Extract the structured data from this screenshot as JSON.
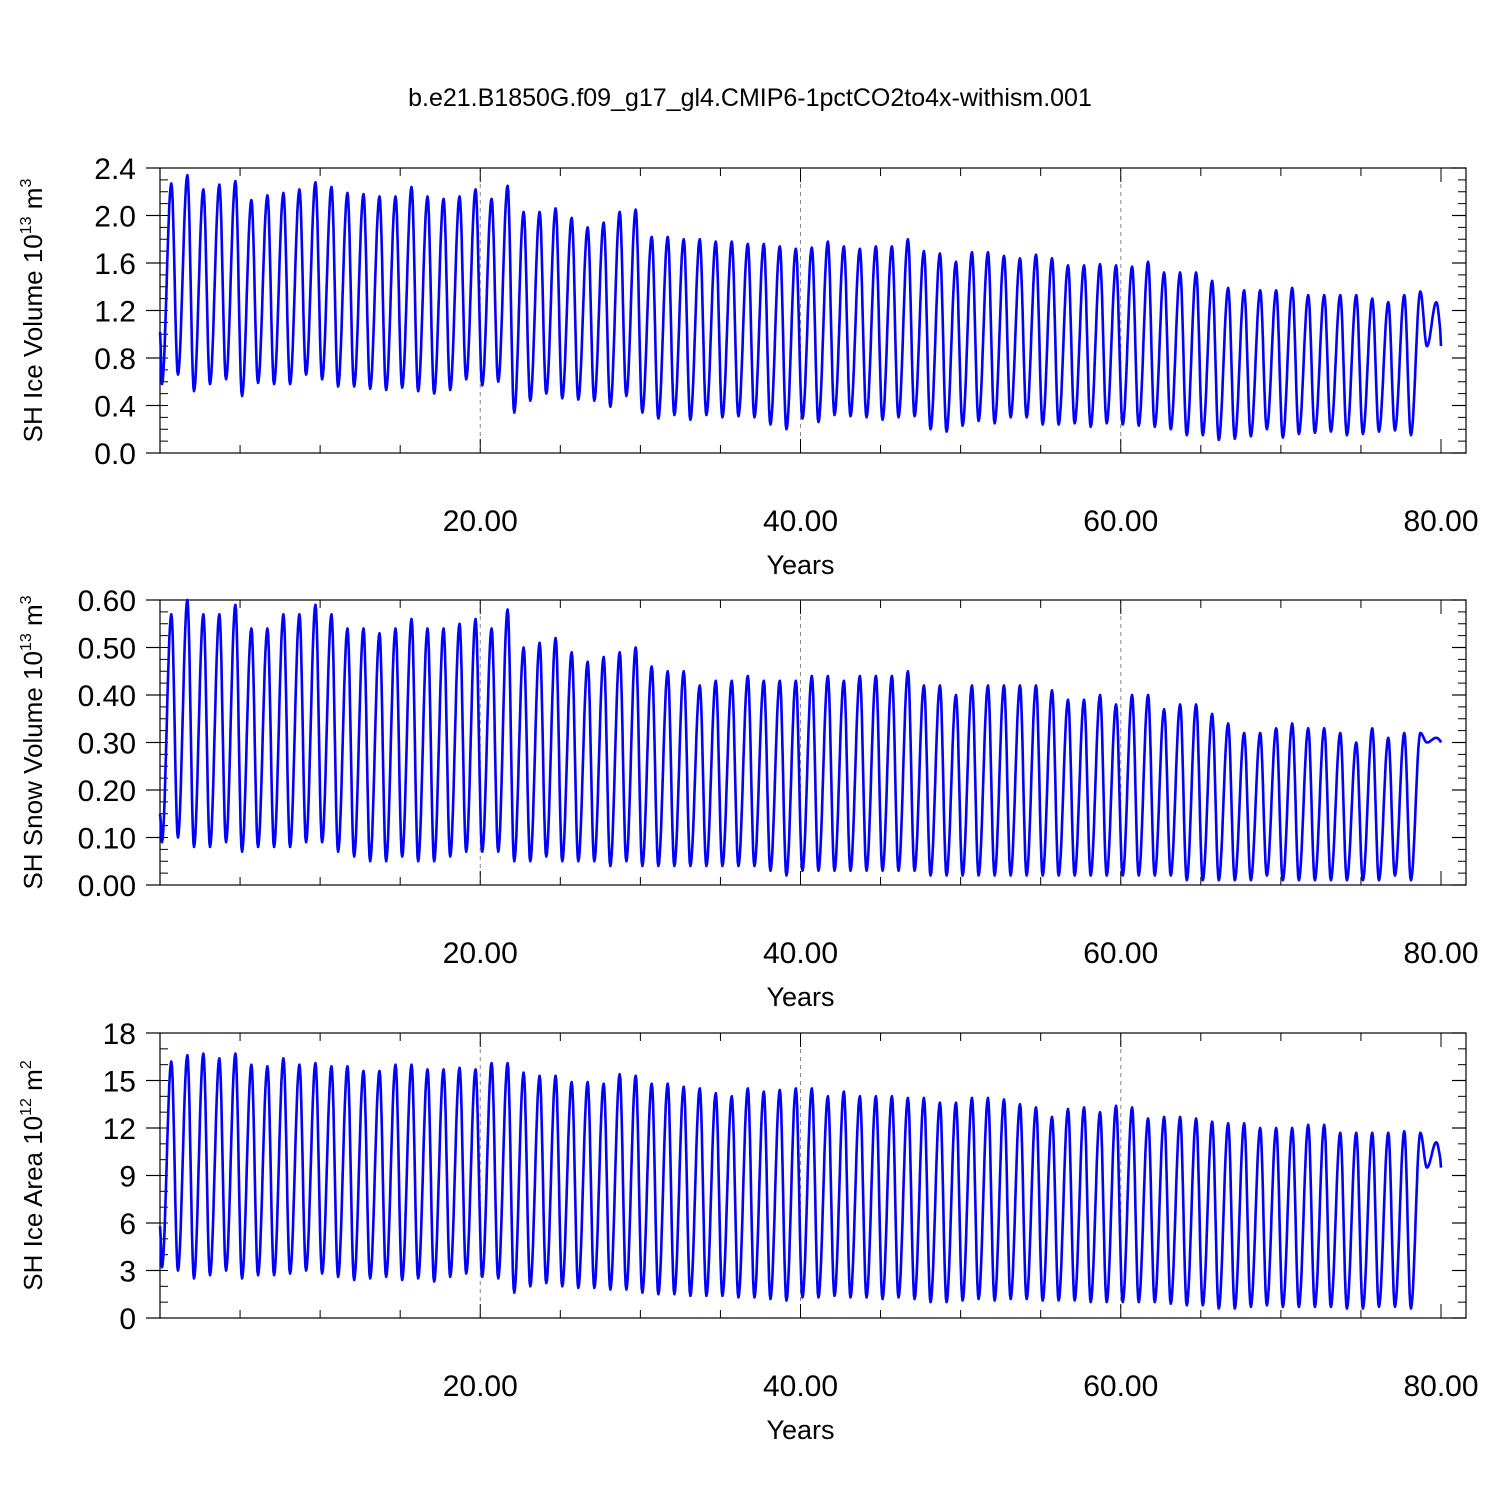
{
  "page": {
    "title": "b.e21.B1850G.f09_g17_gl4.CMIP6-1pctCO2to4x-withism.001"
  },
  "colors": {
    "series": "#0000ff",
    "axis": "#000000",
    "gridline": "#888888"
  },
  "chart_data": [
    {
      "type": "line",
      "ylabel": {
        "prefix": "SH Ice Volume 10",
        "exponent": "13",
        "unit": " m",
        "unit_exponent": "3"
      },
      "xlabel": "Years",
      "xlim": [
        0,
        80
      ],
      "ylim": [
        0,
        2.4
      ],
      "xticks": [
        20,
        40,
        60,
        80
      ],
      "xtick_labels": [
        "20.00",
        "40.00",
        "60.00",
        "80.00"
      ],
      "yticks": [
        0,
        0.4,
        0.8,
        1.2,
        1.6,
        2.0,
        2.4
      ],
      "ytick_labels": [
        "0.0",
        "0.4",
        "0.8",
        "1.2",
        "1.6",
        "2.0",
        "2.4"
      ],
      "y_minor_step": 0.1,
      "vertical_gridlines": [
        20,
        40,
        60
      ],
      "series": [
        {
          "name": "SH Ice Volume",
          "start_value": 1.02,
          "annual_max": [
            2.27,
            2.34,
            2.22,
            2.26,
            2.29,
            2.13,
            2.17,
            2.19,
            2.22,
            2.28,
            2.24,
            2.19,
            2.18,
            2.16,
            2.16,
            2.24,
            2.16,
            2.14,
            2.16,
            2.22,
            2.14,
            2.25,
            2.03,
            2.03,
            2.06,
            1.98,
            1.9,
            1.94,
            2.03,
            2.05,
            1.82,
            1.82,
            1.8,
            1.8,
            1.78,
            1.78,
            1.76,
            1.76,
            1.74,
            1.72,
            1.73,
            1.78,
            1.74,
            1.72,
            1.74,
            1.74,
            1.8,
            1.7,
            1.68,
            1.61,
            1.69,
            1.69,
            1.66,
            1.64,
            1.67,
            1.64,
            1.58,
            1.58,
            1.59,
            1.58,
            1.57,
            1.61,
            1.52,
            1.52,
            1.52,
            1.45,
            1.39,
            1.37,
            1.37,
            1.37,
            1.39,
            1.33,
            1.33,
            1.33,
            1.33,
            1.3,
            1.27,
            1.33,
            1.36,
            1.27
          ],
          "annual_min": [
            0.58,
            0.66,
            0.52,
            0.58,
            0.62,
            0.48,
            0.59,
            0.58,
            0.58,
            0.66,
            0.62,
            0.56,
            0.56,
            0.54,
            0.53,
            0.55,
            0.52,
            0.5,
            0.53,
            0.62,
            0.57,
            0.6,
            0.34,
            0.44,
            0.5,
            0.46,
            0.45,
            0.44,
            0.39,
            0.48,
            0.34,
            0.29,
            0.32,
            0.28,
            0.32,
            0.3,
            0.31,
            0.3,
            0.24,
            0.2,
            0.29,
            0.26,
            0.32,
            0.31,
            0.3,
            0.28,
            0.3,
            0.31,
            0.2,
            0.18,
            0.23,
            0.27,
            0.25,
            0.3,
            0.3,
            0.24,
            0.24,
            0.25,
            0.22,
            0.25,
            0.24,
            0.23,
            0.22,
            0.2,
            0.15,
            0.15,
            0.11,
            0.12,
            0.14,
            0.2,
            0.13,
            0.16,
            0.17,
            0.18,
            0.15,
            0.16,
            0.18,
            0.19,
            0.15,
            0.9
          ]
        }
      ]
    },
    {
      "type": "line",
      "ylabel": {
        "prefix": "SH Snow Volume 10",
        "exponent": "13",
        "unit": " m",
        "unit_exponent": "3"
      },
      "xlabel": "Years",
      "xlim": [
        0,
        80
      ],
      "ylim": [
        0,
        0.6
      ],
      "xticks": [
        20,
        40,
        60,
        80
      ],
      "xtick_labels": [
        "20.00",
        "40.00",
        "60.00",
        "80.00"
      ],
      "yticks": [
        0,
        0.1,
        0.2,
        0.3,
        0.4,
        0.5,
        0.6
      ],
      "ytick_labels": [
        "0.00",
        "0.10",
        "0.20",
        "0.30",
        "0.40",
        "0.50",
        "0.60"
      ],
      "y_minor_step": 0.025,
      "vertical_gridlines": [
        20,
        40,
        60
      ],
      "series": [
        {
          "name": "SH Snow Volume",
          "start_value": 0.15,
          "annual_max": [
            0.57,
            0.6,
            0.57,
            0.57,
            0.59,
            0.54,
            0.54,
            0.57,
            0.57,
            0.59,
            0.57,
            0.54,
            0.54,
            0.53,
            0.54,
            0.56,
            0.54,
            0.54,
            0.55,
            0.56,
            0.54,
            0.58,
            0.5,
            0.51,
            0.52,
            0.49,
            0.47,
            0.48,
            0.49,
            0.5,
            0.46,
            0.45,
            0.45,
            0.42,
            0.43,
            0.43,
            0.44,
            0.43,
            0.43,
            0.43,
            0.44,
            0.44,
            0.43,
            0.44,
            0.44,
            0.44,
            0.45,
            0.42,
            0.42,
            0.4,
            0.42,
            0.42,
            0.42,
            0.42,
            0.42,
            0.41,
            0.39,
            0.39,
            0.4,
            0.38,
            0.4,
            0.4,
            0.37,
            0.38,
            0.38,
            0.36,
            0.34,
            0.32,
            0.32,
            0.33,
            0.34,
            0.33,
            0.33,
            0.32,
            0.3,
            0.33,
            0.31,
            0.32,
            0.32,
            0.31
          ],
          "annual_min": [
            0.09,
            0.1,
            0.08,
            0.08,
            0.09,
            0.07,
            0.08,
            0.08,
            0.08,
            0.09,
            0.09,
            0.07,
            0.06,
            0.05,
            0.05,
            0.06,
            0.05,
            0.05,
            0.06,
            0.07,
            0.07,
            0.07,
            0.05,
            0.05,
            0.06,
            0.05,
            0.05,
            0.05,
            0.04,
            0.05,
            0.04,
            0.04,
            0.04,
            0.04,
            0.04,
            0.04,
            0.04,
            0.04,
            0.03,
            0.02,
            0.03,
            0.03,
            0.03,
            0.03,
            0.03,
            0.03,
            0.03,
            0.03,
            0.02,
            0.02,
            0.02,
            0.02,
            0.02,
            0.02,
            0.02,
            0.02,
            0.02,
            0.02,
            0.02,
            0.02,
            0.02,
            0.02,
            0.02,
            0.02,
            0.01,
            0.01,
            0.01,
            0.01,
            0.01,
            0.02,
            0.01,
            0.01,
            0.01,
            0.01,
            0.01,
            0.01,
            0.01,
            0.02,
            0.01,
            0.3
          ]
        }
      ]
    },
    {
      "type": "line",
      "ylabel": {
        "prefix": "SH Ice Area 10",
        "exponent": "12",
        "unit": " m",
        "unit_exponent": "2"
      },
      "xlabel": "Years",
      "xlim": [
        0,
        80
      ],
      "ylim": [
        0,
        18
      ],
      "xticks": [
        20,
        40,
        60,
        80
      ],
      "xtick_labels": [
        "20.00",
        "40.00",
        "60.00",
        "80.00"
      ],
      "yticks": [
        0,
        3,
        6,
        9,
        12,
        15,
        18
      ],
      "ytick_labels": [
        "0",
        "3",
        "6",
        "9",
        "12",
        "15",
        "18"
      ],
      "y_minor_step": 1,
      "vertical_gridlines": [
        20,
        40,
        60
      ],
      "series": [
        {
          "name": "SH Ice Area",
          "start_value": 5.8,
          "annual_max": [
            16.2,
            16.6,
            16.7,
            16.4,
            16.7,
            16.0,
            15.9,
            16.4,
            16.0,
            16.1,
            15.9,
            15.9,
            15.6,
            15.6,
            16.0,
            16.0,
            15.7,
            15.7,
            15.8,
            15.7,
            16.1,
            16.1,
            15.5,
            15.3,
            15.3,
            14.9,
            14.9,
            14.8,
            15.4,
            15.3,
            14.8,
            14.8,
            14.6,
            14.5,
            14.2,
            14.0,
            14.5,
            14.3,
            14.4,
            14.5,
            14.5,
            14.0,
            14.3,
            14.0,
            14.0,
            14.0,
            13.9,
            13.9,
            13.6,
            13.6,
            13.9,
            13.9,
            13.8,
            13.5,
            13.3,
            12.7,
            13.2,
            13.3,
            13.0,
            13.4,
            13.3,
            12.6,
            12.7,
            12.7,
            12.6,
            12.4,
            12.3,
            12.3,
            12.0,
            12.0,
            12.0,
            12.2,
            12.2,
            11.7,
            11.7,
            11.7,
            11.7,
            11.8,
            11.7,
            11.1
          ],
          "annual_min": [
            3.2,
            3.0,
            2.5,
            2.7,
            3.0,
            2.5,
            2.7,
            2.7,
            2.8,
            3.0,
            2.8,
            2.6,
            2.4,
            2.5,
            2.6,
            2.4,
            2.5,
            2.3,
            2.6,
            2.8,
            2.6,
            2.5,
            1.6,
            2.0,
            2.2,
            2.0,
            1.9,
            1.9,
            1.8,
            1.8,
            1.6,
            1.5,
            1.5,
            1.4,
            1.4,
            1.4,
            1.3,
            1.3,
            1.2,
            1.1,
            1.3,
            1.3,
            1.4,
            1.3,
            1.3,
            1.2,
            1.3,
            1.2,
            1.0,
            1.0,
            1.1,
            1.2,
            1.1,
            1.2,
            1.2,
            1.1,
            1.1,
            1.1,
            1.0,
            1.0,
            1.0,
            1.0,
            1.0,
            0.9,
            0.8,
            0.8,
            0.6,
            0.6,
            0.7,
            0.8,
            0.7,
            0.7,
            0.7,
            0.7,
            0.6,
            0.6,
            0.7,
            0.7,
            0.6,
            9.5
          ]
        }
      ]
    }
  ]
}
